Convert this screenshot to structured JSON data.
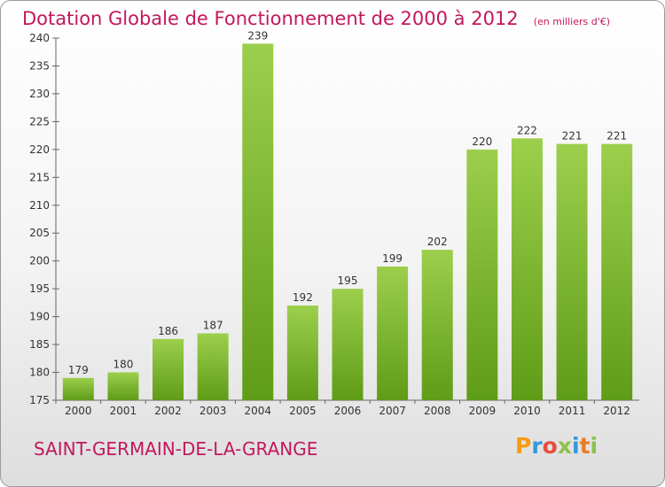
{
  "header": {
    "title": "Dotation Globale de Fonctionnement de 2000 à 2012",
    "unit": "(en milliers d'€)"
  },
  "footer": {
    "commune": "SAINT-GERMAIN-DE-LA-GRANGE",
    "brand_letters": [
      "P",
      "r",
      "o",
      "x",
      "i",
      "t",
      "i"
    ],
    "brand_colors": [
      "#f39c12",
      "#3498db",
      "#e74c3c",
      "#8bc34a",
      "#3498db",
      "#e67e22",
      "#8bc34a"
    ]
  },
  "colors": {
    "title": "#c2185b",
    "bar_light": "#9ccf4c",
    "bar_dark": "#5f9c18"
  },
  "chart_data": {
    "type": "bar",
    "title": "Dotation Globale de Fonctionnement de 2000 à 2012",
    "subtitle": "(en milliers d'€)",
    "categories": [
      "2000",
      "2001",
      "2002",
      "2003",
      "2004",
      "2005",
      "2006",
      "2007",
      "2008",
      "2009",
      "2010",
      "2011",
      "2012"
    ],
    "values": [
      179,
      180,
      186,
      187,
      239,
      192,
      195,
      199,
      202,
      220,
      222,
      221,
      221
    ],
    "ylim": [
      175,
      240
    ],
    "yticks": [
      175,
      180,
      185,
      190,
      195,
      200,
      205,
      210,
      215,
      220,
      225,
      230,
      235,
      240
    ],
    "grid": false,
    "legend": "none"
  }
}
